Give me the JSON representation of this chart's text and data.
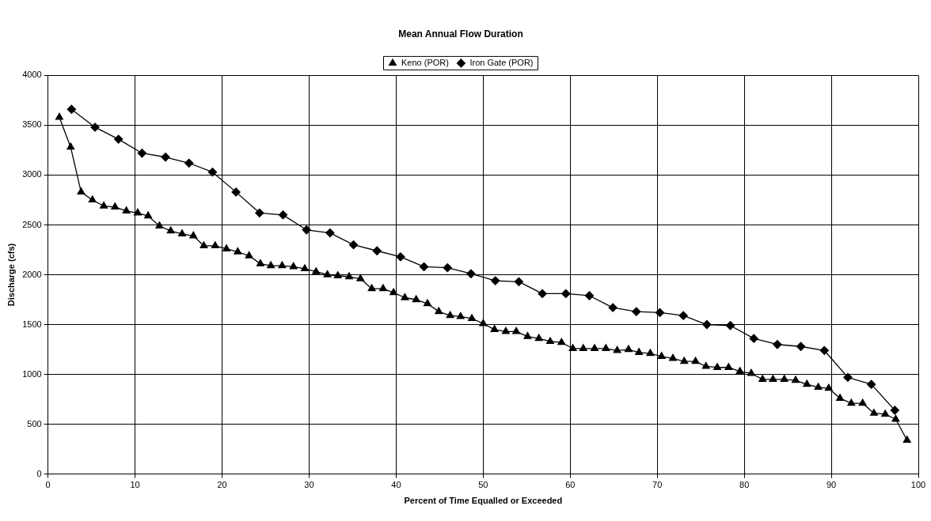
{
  "chart_data": {
    "type": "line",
    "title": "Mean Annual Flow Duration",
    "xlabel": "Percent of Time Equalled or Exceeded",
    "ylabel": "Discharge (cfs)",
    "xlim": [
      0,
      100
    ],
    "xticks": [
      0,
      10,
      20,
      30,
      40,
      50,
      60,
      70,
      80,
      90,
      100
    ],
    "ylim": [
      0,
      4000
    ],
    "yticks": [
      0,
      500,
      1000,
      1500,
      2000,
      2500,
      3000,
      3500,
      4000
    ],
    "grid": true,
    "legend": "top",
    "line_style": "solid",
    "series": [
      {
        "name": "Keno (POR)",
        "color": "#000000",
        "marker": "triangle",
        "x": [
          1.3,
          2.6,
          3.8,
          5.1,
          6.4,
          7.7,
          9.0,
          10.3,
          11.5,
          12.8,
          14.1,
          15.4,
          16.7,
          17.9,
          19.2,
          20.5,
          21.8,
          23.1,
          24.4,
          25.6,
          26.9,
          28.2,
          29.5,
          30.8,
          32.1,
          33.3,
          34.6,
          35.9,
          37.2,
          38.5,
          39.7,
          41.0,
          42.3,
          43.6,
          44.9,
          46.2,
          47.4,
          48.7,
          50.0,
          51.3,
          52.6,
          53.8,
          55.1,
          56.4,
          57.7,
          59.0,
          60.3,
          61.5,
          62.8,
          64.1,
          65.4,
          66.7,
          67.9,
          69.2,
          70.5,
          71.8,
          73.1,
          74.4,
          75.6,
          76.9,
          78.2,
          79.5,
          80.8,
          82.1,
          83.3,
          84.6,
          85.9,
          87.2,
          88.5,
          89.7,
          91.0,
          92.3,
          93.6,
          94.9,
          96.2,
          97.4,
          98.7
        ],
        "values": [
          3580,
          3280,
          2830,
          2750,
          2690,
          2680,
          2640,
          2620,
          2590,
          2490,
          2440,
          2410,
          2390,
          2290,
          2290,
          2260,
          2230,
          2190,
          2110,
          2090,
          2090,
          2080,
          2060,
          2030,
          2000,
          1990,
          1980,
          1960,
          1860,
          1860,
          1820,
          1770,
          1750,
          1710,
          1630,
          1590,
          1580,
          1560,
          1510,
          1450,
          1430,
          1430,
          1380,
          1360,
          1330,
          1320,
          1260,
          1260,
          1260,
          1260,
          1240,
          1250,
          1220,
          1210,
          1180,
          1160,
          1130,
          1130,
          1080,
          1070,
          1070,
          1030,
          1010,
          950,
          950,
          950,
          940,
          900,
          870,
          860,
          760,
          710,
          710,
          610,
          600,
          550,
          340
        ]
      },
      {
        "name": "Iron Gate (POR)",
        "color": "#000000",
        "marker": "diamond",
        "x": [
          2.7,
          5.4,
          8.1,
          10.8,
          13.5,
          16.2,
          18.9,
          21.6,
          24.3,
          27.0,
          29.7,
          32.4,
          35.1,
          37.8,
          40.5,
          43.2,
          45.9,
          48.6,
          51.4,
          54.1,
          56.8,
          59.5,
          62.2,
          64.9,
          67.6,
          70.3,
          73.0,
          75.7,
          78.4,
          81.1,
          83.8,
          86.5,
          89.2,
          91.9,
          94.6,
          97.3
        ],
        "values": [
          3660,
          3480,
          3360,
          3220,
          3180,
          3120,
          3030,
          2830,
          2620,
          2600,
          2450,
          2420,
          2300,
          2240,
          2180,
          2080,
          2070,
          2010,
          1940,
          1930,
          1810,
          1810,
          1790,
          1670,
          1630,
          1620,
          1590,
          1500,
          1490,
          1360,
          1300,
          1280,
          1240,
          970,
          900,
          640
        ]
      }
    ]
  }
}
